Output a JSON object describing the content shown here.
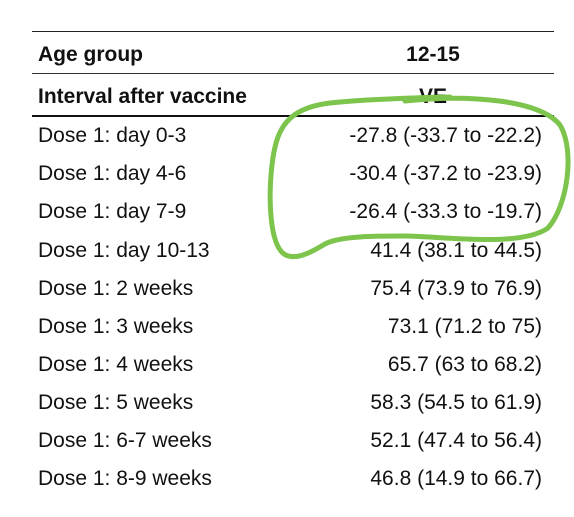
{
  "table": {
    "header": {
      "age_group_label": "Age group",
      "age_group_value": "12-15",
      "interval_label": "Interval after vaccine",
      "ve_label": "VE"
    },
    "rows": [
      {
        "interval": "Dose 1: day 0-3",
        "ve": "-27.8 (-33.7 to -22.2)"
      },
      {
        "interval": "Dose 1: day 4-6",
        "ve": "-30.4 (-37.2 to -23.9)"
      },
      {
        "interval": "Dose 1: day 7-9",
        "ve": "-26.4 (-33.3 to -19.7)"
      },
      {
        "interval": "Dose 1: day 10-13",
        "ve": "41.4 (38.1 to 44.5)"
      },
      {
        "interval": "Dose 1: 2 weeks",
        "ve": "75.4 (73.9 to 76.9)"
      },
      {
        "interval": "Dose 1: 3 weeks",
        "ve": "73.1 (71.2 to 75)"
      },
      {
        "interval": "Dose 1: 4 weeks",
        "ve": "65.7 (63 to 68.2)"
      },
      {
        "interval": "Dose 1: 5 weeks",
        "ve": "58.3 (54.5 to 61.9)"
      },
      {
        "interval": "Dose 1: 6-7 weeks",
        "ve": "52.1 (47.4 to 56.4)"
      },
      {
        "interval": "Dose 1: 8-9 weeks",
        "ve": "46.8 (14.9 to 66.7)"
      }
    ]
  },
  "annotation": {
    "color": "#7cc44c"
  }
}
